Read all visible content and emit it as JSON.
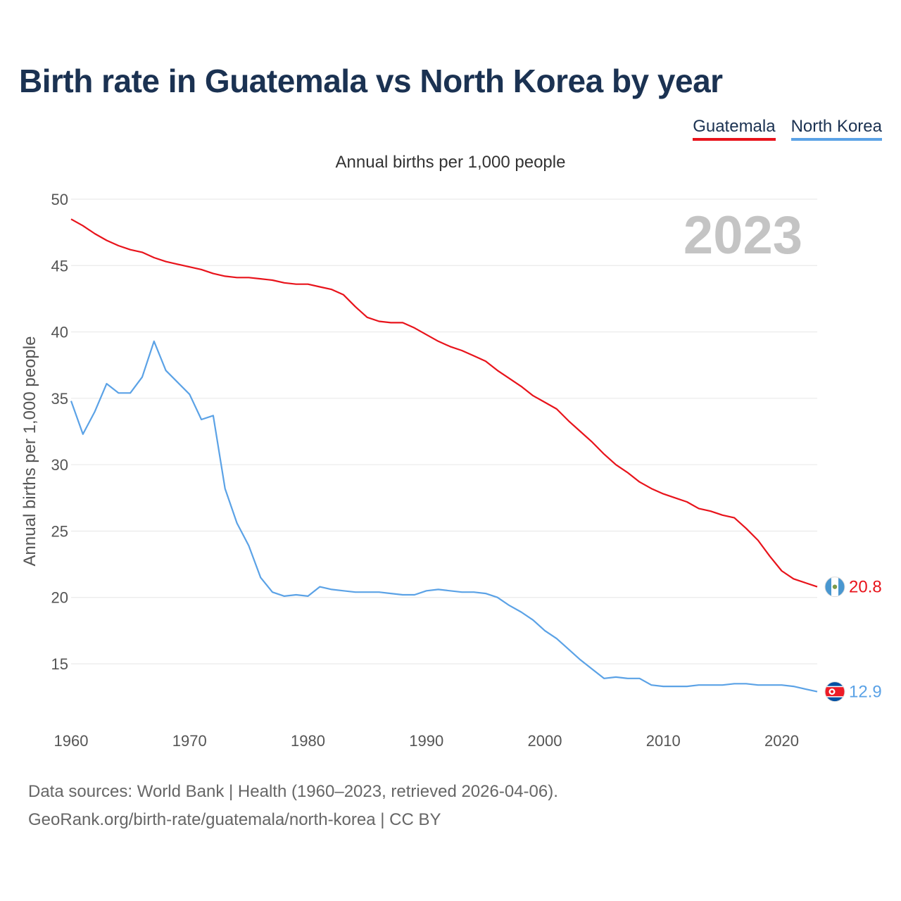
{
  "title": "Birth rate in Guatemala vs North Korea by year",
  "legend": [
    {
      "name": "Guatemala",
      "color": "#e8131b"
    },
    {
      "name": "North Korea",
      "color": "#5ba2e6"
    }
  ],
  "subtitle": "Annual births per 1,000 people",
  "source": {
    "line1": "Data sources: World Bank | Health (1960–2023, retrieved 2026-04-06).",
    "line2": "GeoRank.org/birth-rate/guatemala/north-korea | CC BY"
  },
  "chart_data": {
    "type": "line",
    "title": "Birth rate in Guatemala vs North Korea by year",
    "ylabel": "Annual births per 1,000 people",
    "xlabel": "",
    "xlim": [
      1960,
      2023
    ],
    "ylim": [
      10.6,
      50
    ],
    "yticks": [
      15,
      20,
      25,
      30,
      35,
      40,
      45,
      50
    ],
    "xticks": [
      1960,
      1970,
      1980,
      1990,
      2000,
      2010,
      2020
    ],
    "grid": true,
    "legend_position": "top-right",
    "watermark_year": "2023",
    "x": [
      1960,
      1961,
      1962,
      1963,
      1964,
      1965,
      1966,
      1967,
      1968,
      1969,
      1970,
      1971,
      1972,
      1973,
      1974,
      1975,
      1976,
      1977,
      1978,
      1979,
      1980,
      1981,
      1982,
      1983,
      1984,
      1985,
      1986,
      1987,
      1988,
      1989,
      1990,
      1991,
      1992,
      1993,
      1994,
      1995,
      1996,
      1997,
      1998,
      1999,
      2000,
      2001,
      2002,
      2003,
      2004,
      2005,
      2006,
      2007,
      2008,
      2009,
      2010,
      2011,
      2012,
      2013,
      2014,
      2015,
      2016,
      2017,
      2018,
      2019,
      2020,
      2021,
      2022,
      2023
    ],
    "series": [
      {
        "name": "Guatemala",
        "color": "#e8131b",
        "end_label": "20.8",
        "values": [
          48.5,
          48.0,
          47.4,
          46.9,
          46.5,
          46.2,
          46.0,
          45.6,
          45.3,
          45.1,
          44.9,
          44.7,
          44.4,
          44.2,
          44.1,
          44.1,
          44.0,
          43.9,
          43.7,
          43.6,
          43.6,
          43.4,
          43.2,
          42.8,
          41.9,
          41.1,
          40.8,
          40.7,
          40.7,
          40.3,
          39.8,
          39.3,
          38.9,
          38.6,
          38.2,
          37.8,
          37.1,
          36.5,
          35.9,
          35.2,
          34.7,
          34.2,
          33.3,
          32.5,
          31.7,
          30.8,
          30.0,
          29.4,
          28.7,
          28.2,
          27.8,
          27.5,
          27.2,
          26.7,
          26.5,
          26.2,
          26.0,
          25.2,
          24.3,
          23.1,
          22.0,
          21.4,
          21.1,
          20.8
        ]
      },
      {
        "name": "North Korea",
        "color": "#5ba2e6",
        "end_label": "12.9",
        "values": [
          34.8,
          32.3,
          34.0,
          36.1,
          35.4,
          35.4,
          36.6,
          39.3,
          37.1,
          36.2,
          35.3,
          33.4,
          33.7,
          28.2,
          25.6,
          23.9,
          21.5,
          20.4,
          20.1,
          20.2,
          20.1,
          20.8,
          20.6,
          20.5,
          20.4,
          20.4,
          20.4,
          20.3,
          20.2,
          20.2,
          20.5,
          20.6,
          20.5,
          20.4,
          20.4,
          20.3,
          20.0,
          19.4,
          18.9,
          18.3,
          17.5,
          16.9,
          16.1,
          15.3,
          14.6,
          13.9,
          14.0,
          13.9,
          13.9,
          13.4,
          13.3,
          13.3,
          13.3,
          13.4,
          13.4,
          13.4,
          13.5,
          13.5,
          13.4,
          13.4,
          13.4,
          13.3,
          13.1,
          12.9
        ]
      }
    ]
  }
}
